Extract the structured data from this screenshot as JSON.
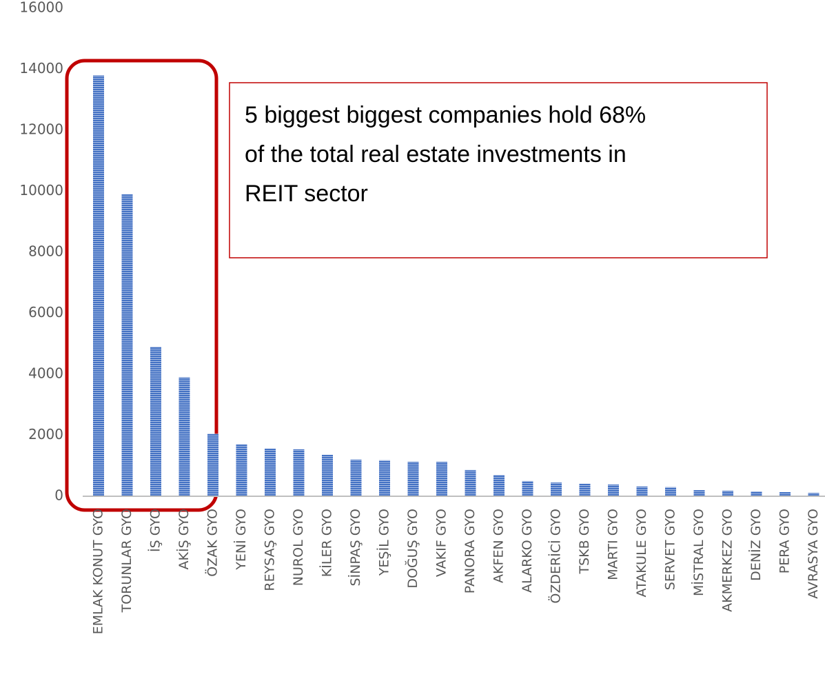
{
  "chart_data": {
    "type": "bar",
    "categories": [
      "EMLAK KONUT GYO",
      "TORUNLAR GYO",
      "İŞ GYO",
      "AKİŞ GYO",
      "ÖZAK GYO",
      "YENİ GYO",
      "REYSAŞ GYO",
      "NUROL GYO",
      "KİLER GYO",
      "SİNPAŞ GYO",
      "YEŞİL GYO",
      "DOĞUŞ GYO",
      "VAKIF GYO",
      "PANORA GYO",
      "AKFEN GYO",
      "ALARKO GYO",
      "ÖZDERİCİ GYO",
      "TSKB GYO",
      "MARTI GYO",
      "ATAKULE GYO",
      "SERVET GYO",
      "MİSTRAL GYO",
      "AKMERKEZ GYO",
      "DENİZ GYO",
      "PERA GYO",
      "AVRASYA GYO"
    ],
    "values": [
      13800,
      9900,
      4900,
      3900,
      2050,
      1700,
      1560,
      1540,
      1360,
      1200,
      1180,
      1130,
      1130,
      860,
      700,
      500,
      450,
      410,
      385,
      320,
      300,
      200,
      180,
      160,
      135,
      110
    ],
    "color": "#4472c4",
    "ylim": [
      0,
      16000
    ],
    "yticks": [
      0,
      2000,
      4000,
      6000,
      8000,
      10000,
      12000,
      14000,
      16000
    ],
    "grid": false,
    "annotation": [
      "5 biggest biggest companies hold 68%",
      "of the total real estate investments in",
      "REIT sector"
    ]
  }
}
